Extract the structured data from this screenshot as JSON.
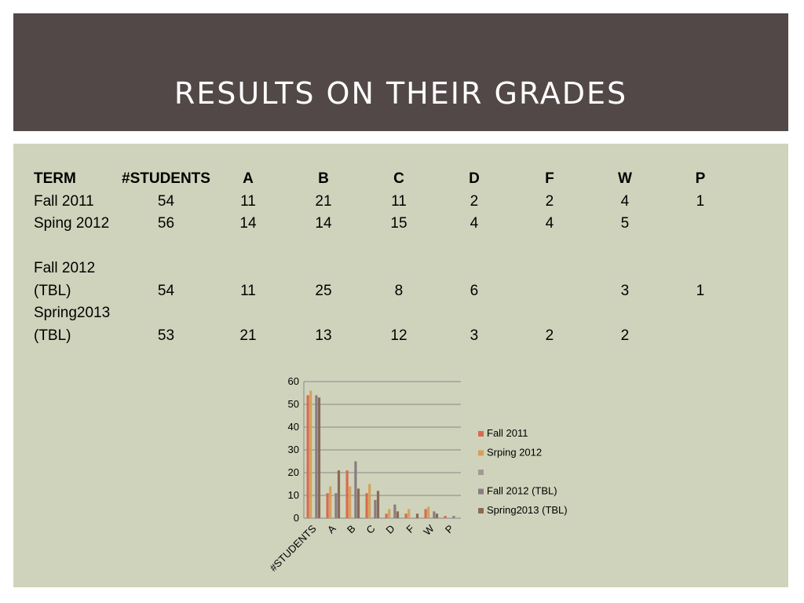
{
  "title": "RESULTS ON THEIR GRADES",
  "table": {
    "headers": [
      "TERM",
      "#STUDENTS",
      "A",
      "B",
      "C",
      "D",
      "F",
      "W",
      "P"
    ],
    "rows": [
      {
        "term_lines": [
          "Fall 2011"
        ],
        "cells": [
          "54",
          "11",
          "21",
          "11",
          "2",
          "2",
          "4",
          "1"
        ],
        "bold": [
          1
        ]
      },
      {
        "term_lines": [
          "Sping 2012"
        ],
        "cells": [
          "56",
          "14",
          "14",
          "15",
          "4",
          "4",
          "5",
          ""
        ],
        "bold": []
      },
      {
        "term_lines": [
          "",
          "Fall 2012",
          "(TBL)"
        ],
        "cells": [
          "54",
          "11",
          "25",
          "8",
          "6",
          "",
          "3",
          "1"
        ],
        "bold": []
      },
      {
        "term_lines": [
          "Spring2013",
          "(TBL)"
        ],
        "cells": [
          "53",
          "21",
          "13",
          "12",
          "3",
          "2",
          "2",
          ""
        ],
        "bold": [
          1
        ]
      }
    ]
  },
  "chart_data": {
    "type": "bar",
    "categories": [
      "#STUDENTS",
      "A",
      "B",
      "C",
      "D",
      "F",
      "W",
      "P"
    ],
    "ylim": [
      0,
      60
    ],
    "yticks": [
      "0",
      "10",
      "20",
      "30",
      "40",
      "50",
      "60"
    ],
    "series": [
      {
        "name": "Fall 2011",
        "color": "#d96a4e",
        "values": [
          54,
          11,
          21,
          11,
          2,
          2,
          4,
          1
        ]
      },
      {
        "name": "Srping 2012",
        "color": "#d6a15a",
        "values": [
          56,
          14,
          14,
          15,
          4,
          4,
          5,
          0
        ]
      },
      {
        "name": "",
        "color": "#a39b93",
        "values": [
          0,
          0,
          0,
          0,
          0,
          0,
          0,
          0
        ]
      },
      {
        "name": "Fall 2012 (TBL)",
        "color": "#8a7c82",
        "values": [
          54,
          11,
          25,
          8,
          6,
          0,
          3,
          1
        ]
      },
      {
        "name": "Spring2013 (TBL)",
        "color": "#8b6a55",
        "values": [
          53,
          21,
          13,
          12,
          3,
          2,
          2,
          0
        ]
      }
    ],
    "legend_position": "right",
    "grid": true
  }
}
